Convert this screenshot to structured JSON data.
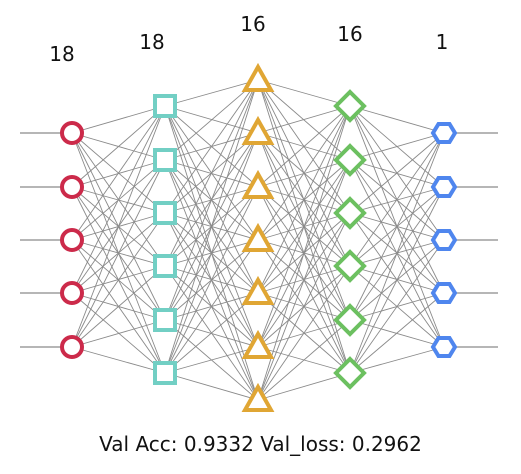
{
  "layers": [
    {
      "count_label": "18",
      "shape": "circle",
      "color": "#cc2a4a",
      "nodes": 5,
      "stub": "input"
    },
    {
      "count_label": "18",
      "shape": "square",
      "color": "#72cfc4",
      "nodes": 6
    },
    {
      "count_label": "16",
      "shape": "triangle",
      "color": "#e0a634",
      "nodes": 7
    },
    {
      "count_label": "16",
      "shape": "diamond",
      "color": "#6cc060",
      "nodes": 6
    },
    {
      "count_label": "1",
      "shape": "hexagon",
      "color": "#4f86ee",
      "nodes": 5,
      "stub": "output"
    }
  ],
  "caption": {
    "acc_label": "Val Acc:",
    "acc_value": "0.9332",
    "loss_label": "Val_loss:",
    "loss_value": "0.2962"
  },
  "edge_color": "#8a8a8a"
}
